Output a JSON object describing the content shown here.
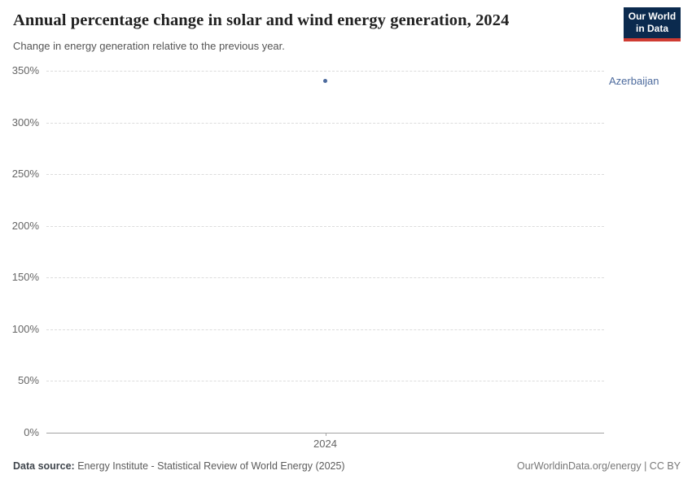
{
  "header": {
    "title": "Annual percentage change in solar and wind energy generation, 2024",
    "subtitle": "Change in energy generation relative to the previous year.",
    "logo": {
      "line1": "Our World",
      "line2": "in Data"
    }
  },
  "chart_data": {
    "type": "scatter",
    "title": "Annual percentage change in solar and wind energy generation, 2024",
    "subtitle": "Change in energy generation relative to the previous year.",
    "categories": [
      "2024"
    ],
    "series": [
      {
        "name": "Azerbaijan",
        "values": [
          340
        ]
      }
    ],
    "xlabel": "",
    "ylabel": "",
    "ylim": [
      0,
      350
    ],
    "yticks": [
      0,
      50,
      100,
      150,
      200,
      250,
      300,
      350
    ],
    "ytick_format": "{}%",
    "grid": "horizontal-dashed",
    "legend_position": "label-right-of-plot"
  },
  "colors": {
    "series_azerbaijan": "#4c6a9d",
    "logo_bg": "#0b2a4e",
    "logo_accent": "#cf3b32",
    "grid": "#dcdcdc",
    "axis": "#a3a3a3"
  },
  "footer": {
    "source_label": "Data source:",
    "source_text": " Energy Institute - Statistical Review of World Energy (2025)",
    "credit": "OurWorldinData.org/energy | CC BY"
  }
}
